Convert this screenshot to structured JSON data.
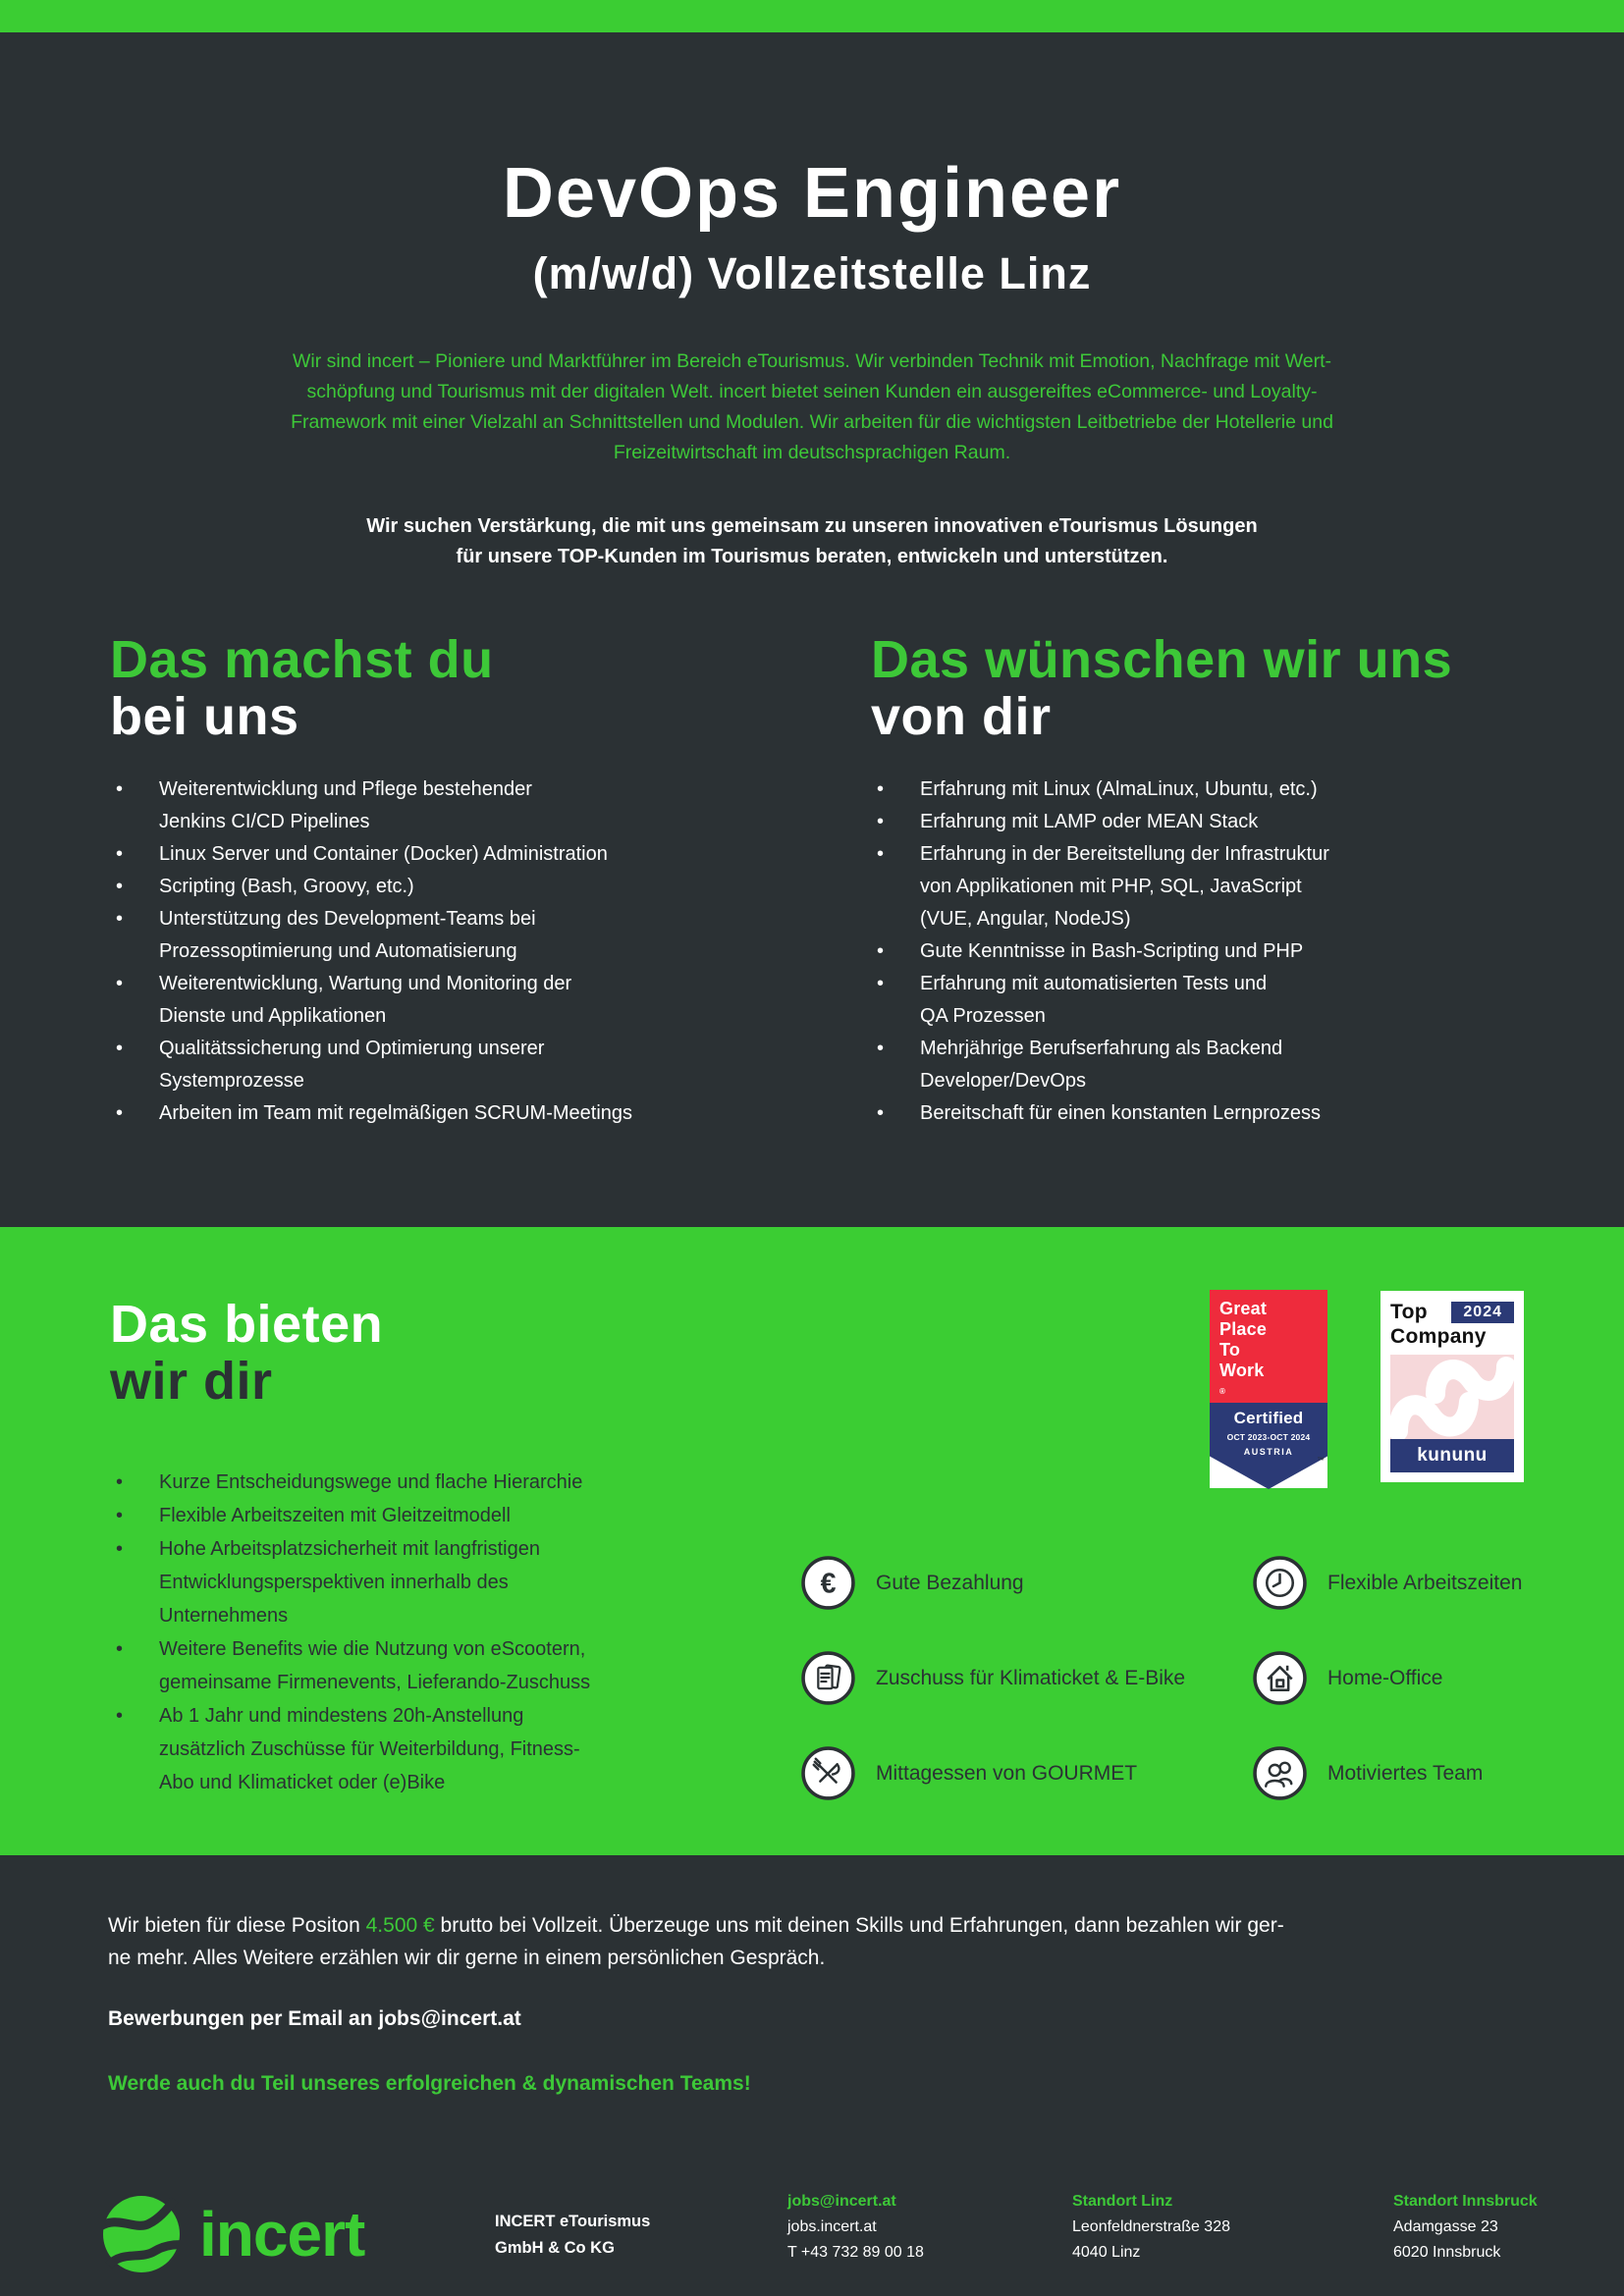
{
  "colors": {
    "dark": "#2b3134",
    "green_bg": "#3bcd33",
    "green_text": "#3dc838",
    "white": "#ffffff",
    "badge_red": "#ee2b3c",
    "badge_navy": "#2b3a76",
    "badge_pink": "#f6d8da"
  },
  "header": {
    "title": "DevOps Engineer",
    "subtitle": "(m/w/d) Vollzeitstelle Linz",
    "intro_green": "Wir sind incert – Pioniere und Marktführer im Bereich eTourismus. Wir verbinden Technik mit Emotion, Nachfrage mit Wert-\nschöpfung und Tourismus mit der digitalen Welt. incert bietet seinen Kunden ein ausgereiftes eCommerce- und Loyalty-\nFramework mit einer Vielzahl an Schnittstellen und Modulen. Wir arbeiten für die wichtigsten Leitbetriebe der Hotellerie und\nFreizeitwirtschaft im deutschsprachigen Raum.",
    "intro_bold": "Wir suchen Verstärkung, die mit uns gemeinsam zu unseren innovativen eTourismus Lösungen\nfür unsere TOP-Kunden im Tourismus beraten, entwickeln und unterstützen."
  },
  "sections": {
    "tasks": {
      "heading_line1": "Das machst du",
      "heading_line2": "bei uns",
      "items": [
        "Weiterentwicklung und Pflege bestehender\nJenkins CI/CD Pipelines",
        "Linux Server und Container (Docker) Administration",
        "Scripting (Bash, Groovy, etc.)",
        "Unterstützung des Development-Teams bei\nProzessoptimierung und Automatisierung",
        "Weiterentwicklung, Wartung und Monitoring der\nDienste und Applikationen",
        "Qualitätssicherung und Optimierung unserer\nSystemprozesse",
        "Arbeiten im Team mit regelmäßigen SCRUM-Meetings"
      ]
    },
    "wishes": {
      "heading_line1": "Das wünschen wir uns",
      "heading_line2": "von dir",
      "items": [
        "Erfahrung mit Linux (AlmaLinux, Ubuntu, etc.)",
        "Erfahrung mit LAMP oder MEAN Stack",
        "Erfahrung in der Bereitstellung der Infrastruktur\nvon Applikationen mit PHP, SQL, JavaScript\n(VUE, Angular, NodeJS)",
        "Gute Kenntnisse in Bash-Scripting und PHP",
        "Erfahrung mit automatisierten Tests und\nQA Prozessen",
        "Mehrjährige Berufserfahrung als Backend\nDeveloper/DevOps",
        "Bereitschaft für einen konstanten Lernprozess"
      ]
    },
    "offer": {
      "heading_line1": "Das bieten",
      "heading_line2": "wir dir",
      "items": [
        "Kurze Entscheidungswege und flache Hierarchie",
        "Flexible Arbeitszeiten mit Gleitzeitmodell",
        "Hohe Arbeitsplatzsicherheit mit langfristigen\nEntwicklungsperspektiven innerhalb des\nUnternehmens",
        "Weitere Benefits wie die Nutzung von eScootern,\ngemeinsame Firmenevents, Lieferando-Zuschuss",
        "Ab 1 Jahr und mindestens 20h-Anstellung\nzusätzlich Zuschüsse für Weiterbildung, Fitness-\nAbo und Klimaticket oder (e)Bike"
      ],
      "benefits": [
        {
          "icon": "euro-icon",
          "label": "Gute Bezahlung"
        },
        {
          "icon": "clock-icon",
          "label": "Flexible Arbeitszeiten"
        },
        {
          "icon": "ticket-icon",
          "label": "Zuschuss für Klimaticket & E-Bike"
        },
        {
          "icon": "home-icon",
          "label": "Home-Office"
        },
        {
          "icon": "cutlery-icon",
          "label": "Mittagessen von GOURMET"
        },
        {
          "icon": "team-icon",
          "label": "Motiviertes Team"
        }
      ]
    }
  },
  "badges": {
    "gptw": {
      "line1": "Great",
      "line2": "Place",
      "line3": "To",
      "line4": "Work",
      "reg": "®",
      "certified": "Certified",
      "dates": "OCT 2023-OCT 2024",
      "country": "AUSTRIA",
      "tm": "™"
    },
    "kununu": {
      "top": "Top",
      "year": "2024",
      "company": "Company",
      "brand": "kununu"
    }
  },
  "closing": {
    "before": "Wir bieten für diese Positon ",
    "salary": "4.500 €",
    "after": " brutto bei Vollzeit. Überzeuge uns mit deinen Skills und Erfahrungen, dann bezahlen wir ger-\nne mehr. Alles Weitere erzählen wir dir gerne in einem persönlichen Gespräch.",
    "apply": "Bewerbungen per Email an jobs@incert.at",
    "cta": "Werde auch du Teil unseres erfolgreichen & dynamischen Teams!"
  },
  "footer": {
    "logo_text": "incert",
    "company": "INCERT eTourismus\nGmbH & Co KG",
    "contact": {
      "head": "jobs@incert.at",
      "web": "jobs.incert.at",
      "phone": "T +43 732 89 00 18"
    },
    "linz": {
      "head": "Standort Linz",
      "line1": "Leonfeldnerstraße 328",
      "line2": "4040 Linz"
    },
    "innsbruck": {
      "head": "Standort Innsbruck",
      "line1": "Adamgasse 23",
      "line2": "6020 Innsbruck"
    }
  }
}
